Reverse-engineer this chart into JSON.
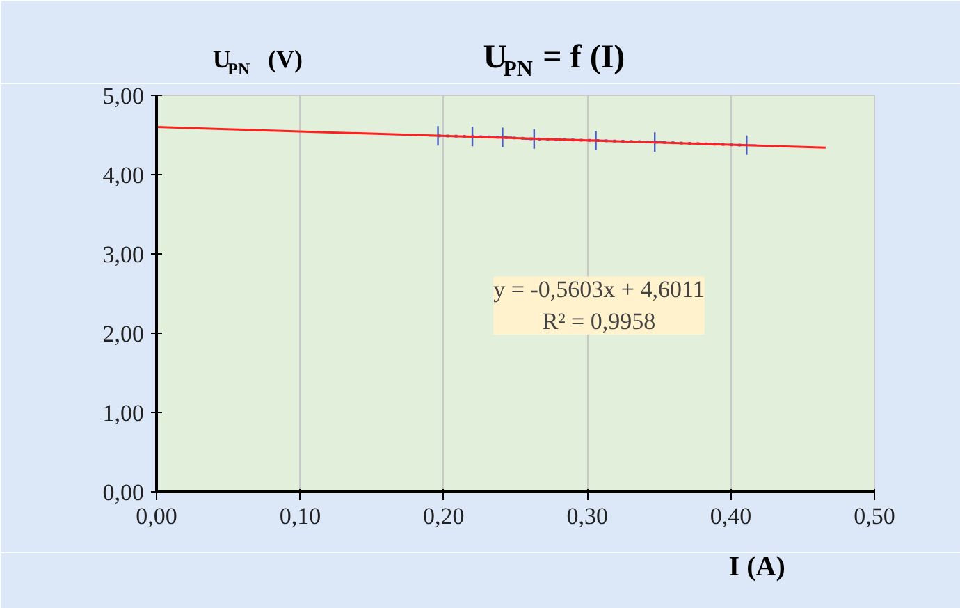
{
  "chart_data": {
    "type": "line",
    "title": "U$_{PN}$ = f (I)",
    "xlabel": "I  (A)",
    "ylabel": "U$_{PN}$  (V)",
    "annotations": [
      "y = -0,5603x + 4,6011\nR² = 0,9958"
    ],
    "series": [
      {
        "color": "#4a5fc1",
        "line_style": "dotted",
        "marker": "cross",
        "x": [
          0.196,
          0.22,
          0.241,
          0.263,
          0.306,
          0.347,
          0.411
        ],
        "values": [
          4.49,
          4.48,
          4.47,
          4.45,
          4.43,
          4.41,
          4.37
        ]
      },
      {
        "color": "#ff2020",
        "line_style": "solid",
        "marker": "none",
        "x": [
          0,
          0.466
        ],
        "values": [
          4.6,
          4.34
        ]
      }
    ],
    "xlim": [
      0,
      0.5
    ],
    "ylim": [
      0,
      5
    ],
    "xticks": [
      {
        "value": 0,
        "label": "0,00"
      },
      {
        "value": 0.1,
        "label": "0,10"
      },
      {
        "value": 0.2,
        "label": "0,20"
      },
      {
        "value": 0.3,
        "label": "0,30"
      },
      {
        "value": 0.4,
        "label": "0,40"
      },
      {
        "value": 0.5,
        "label": "0,50"
      }
    ],
    "yticks": [
      {
        "value": 0,
        "label": "0,00"
      },
      {
        "value": 1,
        "label": "1,00"
      },
      {
        "value": 2,
        "label": "2,00"
      },
      {
        "value": 3,
        "label": "3,00"
      },
      {
        "value": 4,
        "label": "4,00"
      },
      {
        "value": 5,
        "label": "5,00"
      }
    ],
    "grid": "x"
  }
}
